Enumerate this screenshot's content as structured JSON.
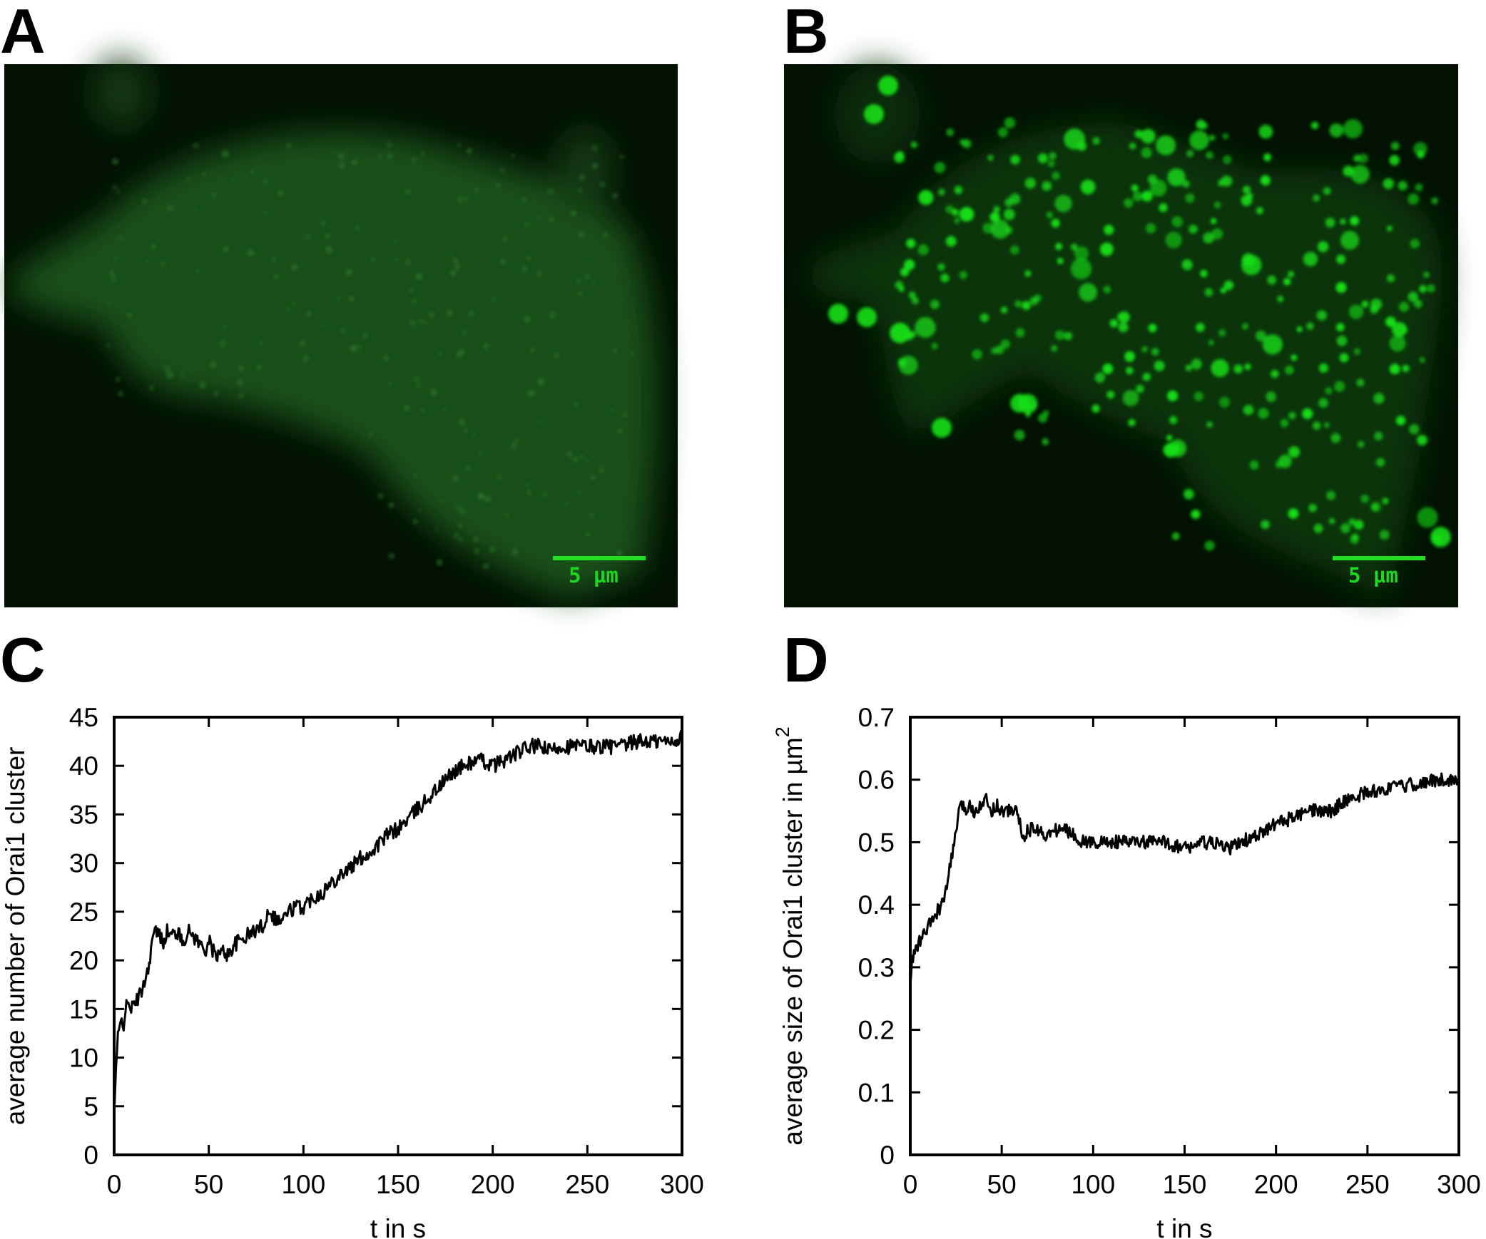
{
  "panels": {
    "a": {
      "letter": "A",
      "scale_bar_label": "5 µm",
      "color": "#1e5a1e"
    },
    "b": {
      "letter": "B",
      "scale_bar_label": "5 µm",
      "color": "#16e016"
    },
    "c": {
      "letter": "C"
    },
    "d": {
      "letter": "D"
    }
  },
  "colors": {
    "microscopy_bg": "#031203",
    "scale_bar": "#22dd22",
    "line": "#000000"
  },
  "chart_data": [
    {
      "panel": "C",
      "type": "line",
      "title": "",
      "xlabel": "t in s",
      "ylabel": "average number of Orai1 cluster",
      "xlim": [
        0,
        300
      ],
      "ylim": [
        0,
        45
      ],
      "xticks": [
        0,
        50,
        100,
        150,
        200,
        250,
        300
      ],
      "yticks": [
        0,
        5,
        10,
        15,
        20,
        25,
        30,
        35,
        40,
        45
      ],
      "grid": false,
      "x": [
        0,
        1,
        2,
        3,
        4,
        5,
        6,
        8,
        10,
        12,
        14,
        16,
        18,
        20,
        22,
        24,
        26,
        28,
        30,
        33,
        36,
        40,
        44,
        48,
        50,
        52,
        55,
        58,
        60,
        63,
        66,
        70,
        74,
        78,
        80,
        82,
        84,
        88,
        92,
        96,
        100,
        105,
        110,
        115,
        120,
        125,
        130,
        135,
        140,
        145,
        150,
        155,
        160,
        165,
        170,
        175,
        180,
        185,
        190,
        195,
        200,
        205,
        210,
        215,
        220,
        225,
        230,
        235,
        240,
        245,
        250,
        255,
        260,
        265,
        270,
        275,
        280,
        285,
        290,
        295,
        300
      ],
      "y": [
        4,
        9,
        12,
        13,
        14,
        13.5,
        15,
        15.5,
        15,
        16,
        16.5,
        18,
        19,
        22,
        23,
        22.5,
        22,
        23,
        22.5,
        23,
        22,
        23,
        22,
        21,
        22,
        21,
        20.5,
        21,
        20.5,
        21.5,
        22,
        22.5,
        23,
        23.5,
        24,
        25.5,
        24.5,
        24,
        25,
        25.5,
        25.5,
        26.5,
        27,
        28,
        29,
        29.5,
        30.5,
        31,
        32,
        33,
        33.5,
        34.5,
        35.5,
        36.5,
        37.5,
        38.5,
        39.5,
        40,
        40.5,
        40.5,
        40,
        40.5,
        41,
        41.5,
        42,
        42,
        41.5,
        42,
        42,
        42,
        42,
        42,
        42,
        42,
        42,
        42.5,
        42.5,
        42.5,
        42.5,
        42.5,
        43
      ]
    },
    {
      "panel": "D",
      "type": "line",
      "title": "",
      "xlabel": "t in s",
      "ylabel": "average size of Orai1 cluster in µm",
      "ylabel_superscript": "2",
      "xlim": [
        0,
        300
      ],
      "ylim": [
        0,
        0.7
      ],
      "xticks": [
        0,
        50,
        100,
        150,
        200,
        250,
        300
      ],
      "yticks": [
        0,
        0.1,
        0.2,
        0.3,
        0.4,
        0.5,
        0.6,
        0.7
      ],
      "grid": false,
      "x": [
        0,
        1,
        2,
        3,
        5,
        7,
        9,
        11,
        13,
        15,
        17,
        19,
        21,
        23,
        25,
        27,
        29,
        31,
        33,
        35,
        38,
        41,
        44,
        47,
        50,
        53,
        56,
        59,
        60,
        61,
        62,
        65,
        70,
        75,
        80,
        85,
        90,
        95,
        100,
        110,
        120,
        130,
        140,
        150,
        160,
        170,
        175,
        180,
        190,
        200,
        210,
        220,
        230,
        240,
        250,
        260,
        270,
        280,
        290,
        300
      ],
      "y": [
        0.27,
        0.31,
        0.32,
        0.33,
        0.34,
        0.35,
        0.36,
        0.37,
        0.38,
        0.39,
        0.4,
        0.41,
        0.45,
        0.48,
        0.52,
        0.55,
        0.56,
        0.55,
        0.56,
        0.55,
        0.56,
        0.57,
        0.55,
        0.56,
        0.55,
        0.55,
        0.55,
        0.55,
        0.53,
        0.5,
        0.51,
        0.52,
        0.52,
        0.51,
        0.52,
        0.52,
        0.51,
        0.5,
        0.5,
        0.5,
        0.5,
        0.5,
        0.5,
        0.49,
        0.5,
        0.495,
        0.49,
        0.5,
        0.51,
        0.53,
        0.54,
        0.55,
        0.55,
        0.57,
        0.58,
        0.585,
        0.59,
        0.595,
        0.6,
        0.6
      ]
    }
  ]
}
